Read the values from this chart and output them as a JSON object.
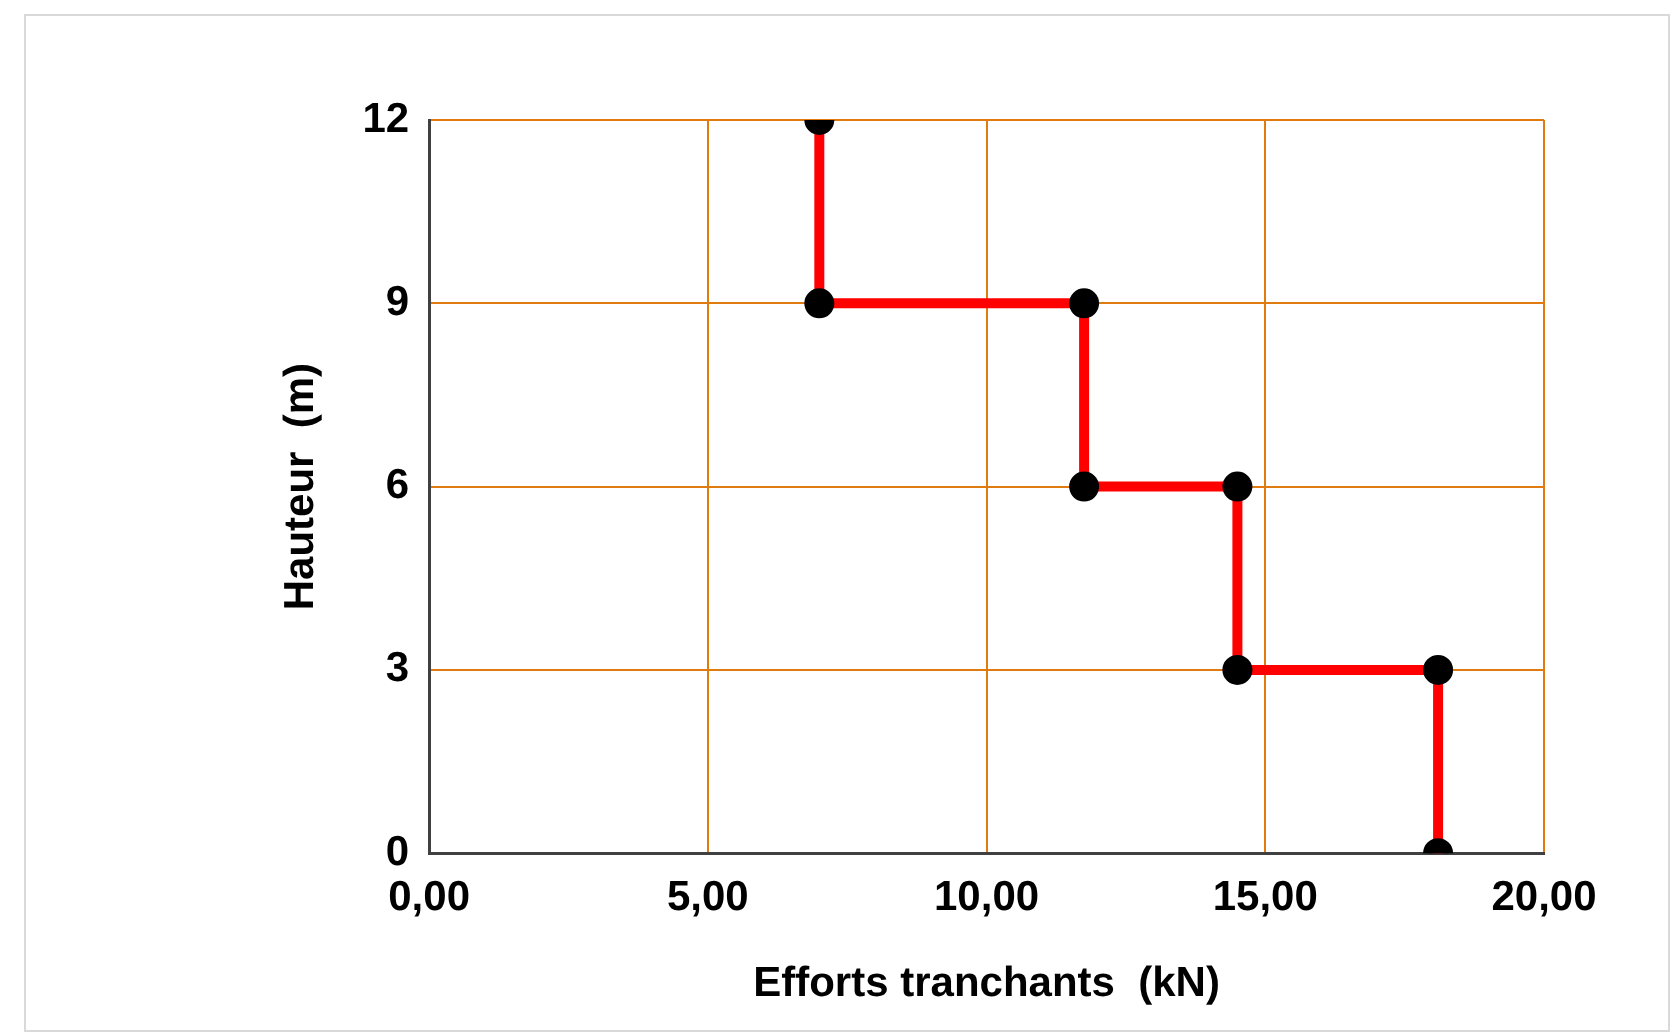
{
  "chart_data": {
    "type": "line",
    "xlabel": "Efforts tranchants  (kN)",
    "ylabel": "Hauteur  (m)",
    "x": [
      7,
      7,
      11.75,
      11.75,
      14.5,
      14.5,
      18.1,
      18.1
    ],
    "series": [
      {
        "color": "#ff0000",
        "values": [
          12,
          9,
          9,
          6,
          6,
          3,
          3,
          0
        ]
      }
    ],
    "xlim": [
      0,
      20
    ],
    "xticks": [
      {
        "value": 0,
        "label": "0,00"
      },
      {
        "value": 5,
        "label": "5,00"
      },
      {
        "value": 10,
        "label": "10,00"
      },
      {
        "value": 15,
        "label": "15,00"
      },
      {
        "value": 20,
        "label": "20,00"
      }
    ],
    "ylim": [
      0,
      12
    ],
    "yticks": [
      0,
      3,
      6,
      9,
      12
    ],
    "grid": true,
    "legend": false,
    "marker": "circle",
    "line_style": "solid"
  }
}
